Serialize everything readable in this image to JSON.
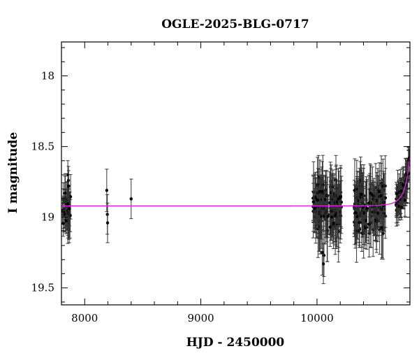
{
  "chart_data": {
    "type": "scatter",
    "title": "OGLE-2025-BLG-0717",
    "xlabel": "HJD - 2450000",
    "ylabel": "I magnitude",
    "xlim": [
      7800,
      10800
    ],
    "ylim": [
      19.62,
      17.76
    ],
    "y_inverted": true,
    "x_ticks": [
      8000,
      9000,
      10000
    ],
    "x_tick_labels": [
      "8000",
      "9000",
      "10000"
    ],
    "y_ticks": [
      18,
      18.5,
      19,
      19.5
    ],
    "y_tick_labels": [
      "18",
      "18.5",
      "19",
      "19.5"
    ],
    "grid": false,
    "legend": "none",
    "colors": {
      "data": "#000000",
      "errorbar": "#333333",
      "model": "#dd22dd",
      "frame": "#000000"
    },
    "series": [
      {
        "marker": "circle",
        "segments": [
          {
            "x_range": [
              7810,
              7880
            ],
            "n": 30,
            "y_center": 18.94,
            "scatter": 0.09,
            "err": 0.13,
            "seed": 1
          },
          {
            "x_range": [
              9965,
              10210
            ],
            "n": 140,
            "y_center": 18.93,
            "scatter": 0.12,
            "err": 0.16,
            "seed": 2
          },
          {
            "x_range": [
              10320,
              10590
            ],
            "n": 140,
            "y_center": 18.93,
            "scatter": 0.12,
            "err": 0.16,
            "seed": 3
          },
          {
            "x_range": [
              10680,
              10800
            ],
            "n": 80,
            "follow_model": true,
            "scatter": 0.06,
            "err": 0.09,
            "seed": 4
          }
        ],
        "points": [
          {
            "x": 7830,
            "y": 18.83,
            "err": 0.12
          },
          {
            "x": 7855,
            "y": 18.7,
            "err": 0.1
          },
          {
            "x": 7860,
            "y": 18.74,
            "err": 0.1
          },
          {
            "x": 7862,
            "y": 18.78,
            "err": 0.11
          },
          {
            "x": 7868,
            "y": 18.94,
            "err": 0.12
          },
          {
            "x": 8190,
            "y": 18.81,
            "err": 0.15
          },
          {
            "x": 8195,
            "y": 18.98,
            "err": 0.14
          },
          {
            "x": 8197,
            "y": 19.04,
            "err": 0.14
          },
          {
            "x": 8400,
            "y": 18.87,
            "err": 0.14
          },
          {
            "x": 10060,
            "y": 19.27,
            "err": 0.15
          },
          {
            "x": 10055,
            "y": 19.33,
            "err": 0.14
          },
          {
            "x": 10045,
            "y": 19.25,
            "err": 0.16
          }
        ]
      }
    ],
    "model": {
      "name": "",
      "baseline": 18.92,
      "t0": 10870,
      "tE": 75,
      "u0": 0.1
    }
  }
}
